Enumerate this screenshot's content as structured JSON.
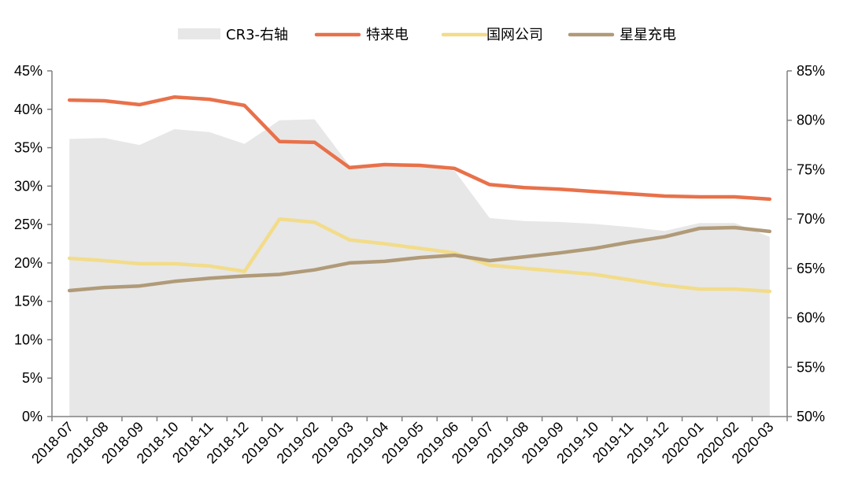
{
  "chart_data": {
    "type": "line",
    "title": "",
    "legend_position": "top",
    "grid": false,
    "categories": [
      "2018-07",
      "2018-08",
      "2018-09",
      "2018-10",
      "2018-11",
      "2018-12",
      "2019-01",
      "2019-02",
      "2019-03",
      "2019-04",
      "2019-05",
      "2019-06",
      "2019-07",
      "2019-08",
      "2019-09",
      "2019-10",
      "2019-11",
      "2019-12",
      "2020-01",
      "2020-02",
      "2020-03"
    ],
    "y_left": {
      "range": [
        0,
        45
      ],
      "ticks": [
        0,
        5,
        10,
        15,
        20,
        25,
        30,
        35,
        40,
        45
      ],
      "tick_labels": [
        "0%",
        "5%",
        "10%",
        "15%",
        "20%",
        "25%",
        "30%",
        "35%",
        "40%",
        "45%"
      ]
    },
    "y_right": {
      "range": [
        50,
        85
      ],
      "ticks": [
        50,
        55,
        60,
        65,
        70,
        75,
        80,
        85
      ],
      "tick_labels": [
        "50%",
        "55%",
        "60%",
        "65%",
        "70%",
        "75%",
        "80%",
        "85%"
      ]
    },
    "series": [
      {
        "name": "CR3-右轴",
        "kind": "area",
        "axis": "right",
        "color": "#e7e7e7",
        "values": [
          78.1,
          78.2,
          77.5,
          79.1,
          78.8,
          77.6,
          80.0,
          80.1,
          75.4,
          75.6,
          75.3,
          74.9,
          70.1,
          69.8,
          69.7,
          69.5,
          69.2,
          68.8,
          69.6,
          69.6,
          68.2
        ]
      },
      {
        "name": "特来电",
        "kind": "line",
        "axis": "left",
        "color": "#e8714a",
        "values": [
          41.2,
          41.1,
          40.6,
          41.6,
          41.3,
          40.5,
          35.8,
          35.7,
          32.4,
          32.8,
          32.7,
          32.3,
          30.2,
          29.8,
          29.6,
          29.3,
          29.0,
          28.7,
          28.6,
          28.6,
          28.3
        ]
      },
      {
        "name": "国网公司",
        "kind": "line",
        "axis": "left",
        "color": "#f2dc8a",
        "values": [
          20.6,
          20.3,
          19.9,
          19.9,
          19.6,
          18.9,
          25.7,
          25.3,
          23.0,
          22.5,
          21.9,
          21.3,
          19.7,
          19.3,
          18.9,
          18.5,
          17.8,
          17.1,
          16.6,
          16.6,
          16.3
        ]
      },
      {
        "name": "星星充电",
        "kind": "line",
        "axis": "left",
        "color": "#b09a78",
        "values": [
          16.4,
          16.8,
          17.0,
          17.6,
          18.0,
          18.3,
          18.5,
          19.1,
          20.0,
          20.2,
          20.7,
          21.0,
          20.3,
          20.8,
          21.3,
          21.9,
          22.7,
          23.4,
          24.5,
          24.6,
          24.1
        ]
      }
    ]
  }
}
